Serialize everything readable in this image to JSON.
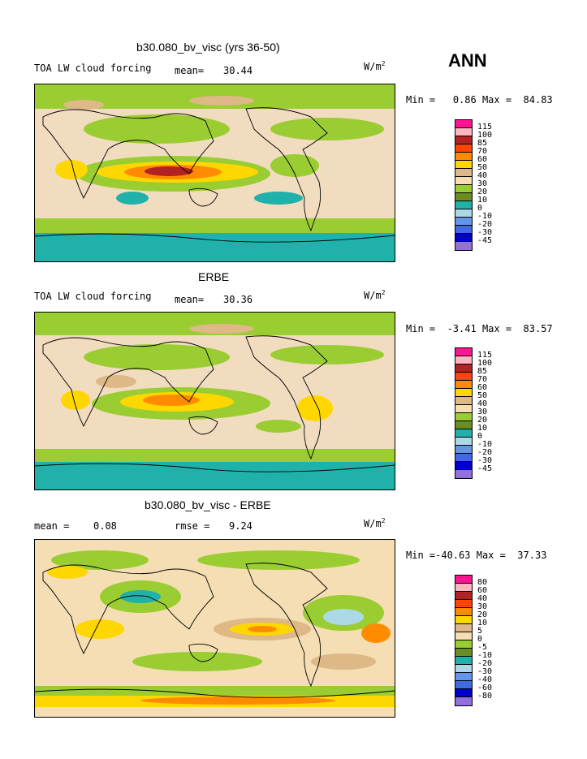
{
  "season": "ANN",
  "panels": [
    {
      "title": "b30.080_bv_visc (yrs 36-50)",
      "left_label": "TOA LW cloud forcing",
      "mean_label": "mean=",
      "mean_value": "30.44",
      "rmse_label": "",
      "rmse_value": "",
      "units": "W/m",
      "units_exp": "2",
      "min_label": "Min =",
      "min_value": "0.86",
      "max_label": "Max =",
      "max_value": "84.83"
    },
    {
      "title": "ERBE",
      "left_label": "TOA LW cloud forcing",
      "mean_label": "mean=",
      "mean_value": "30.36",
      "rmse_label": "",
      "rmse_value": "",
      "units": "W/m",
      "units_exp": "2",
      "min_label": "Min =",
      "min_value": "-3.41",
      "max_label": "Max =",
      "max_value": "83.57"
    },
    {
      "title": "b30.080_bv_visc - ERBE",
      "left_label": "",
      "mean_label": "mean =",
      "mean_value": "0.08",
      "rmse_label": "rmse =",
      "rmse_value": "9.24",
      "units": "W/m",
      "units_exp": "2",
      "min_label": "Min =",
      "min_value": "-40.63",
      "max_label": "Max =",
      "max_value": "37.33"
    }
  ],
  "chart_data": [
    {
      "type": "heatmap",
      "title": "b30.080_bv_visc (yrs 36-50)",
      "variable": "TOA LW cloud forcing",
      "units": "W/m2",
      "mean": 30.44,
      "min": 0.86,
      "max": 84.83,
      "levels": [
        "115",
        "100",
        "85",
        "70",
        "60",
        "50",
        "40",
        "30",
        "20",
        "10",
        "0",
        "-10",
        "-20",
        "-30",
        "-45"
      ],
      "colors": [
        "#ff1493",
        "#ffb6c1",
        "#b22222",
        "#ff4500",
        "#ff8c00",
        "#ffd700",
        "#deb887",
        "#f5deb3",
        "#9acd32",
        "#6b8e23",
        "#20b2aa",
        "#add8e6",
        "#6495ed",
        "#4169e1",
        "#0000cd",
        "#9370db"
      ]
    },
    {
      "type": "heatmap",
      "title": "ERBE",
      "variable": "TOA LW cloud forcing",
      "units": "W/m2",
      "mean": 30.36,
      "min": -3.41,
      "max": 83.57,
      "levels": [
        "115",
        "100",
        "85",
        "70",
        "60",
        "50",
        "40",
        "30",
        "20",
        "10",
        "0",
        "-10",
        "-20",
        "-30",
        "-45"
      ],
      "colors": [
        "#ff1493",
        "#ffb6c1",
        "#b22222",
        "#ff4500",
        "#ff8c00",
        "#ffd700",
        "#deb887",
        "#f5deb3",
        "#9acd32",
        "#6b8e23",
        "#20b2aa",
        "#add8e6",
        "#6495ed",
        "#4169e1",
        "#0000cd",
        "#9370db"
      ]
    },
    {
      "type": "heatmap",
      "title": "b30.080_bv_visc - ERBE",
      "units": "W/m2",
      "mean": 0.08,
      "rmse": 9.24,
      "min": -40.63,
      "max": 37.33,
      "levels": [
        "80",
        "60",
        "40",
        "30",
        "20",
        "10",
        "5",
        "0",
        "-5",
        "-10",
        "-20",
        "-30",
        "-40",
        "-60",
        "-80"
      ],
      "colors": [
        "#ff1493",
        "#ffb6c1",
        "#b22222",
        "#ff4500",
        "#ff8c00",
        "#ffd700",
        "#deb887",
        "#f5deb3",
        "#9acd32",
        "#6b8e23",
        "#20b2aa",
        "#add8e6",
        "#6495ed",
        "#4169e1",
        "#0000cd",
        "#9370db"
      ]
    }
  ]
}
